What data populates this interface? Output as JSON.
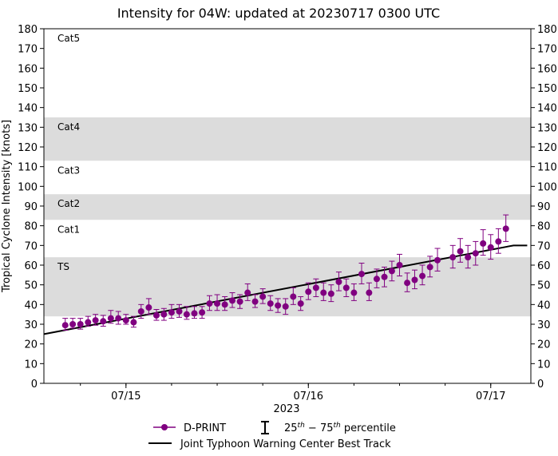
{
  "chart_data": {
    "type": "line",
    "title": "Intensity for 04W: updated at 20230717 0300 UTC",
    "ylabel": "Tropical Cyclone Intensity [knots]",
    "xlabel": "2023",
    "ylim": [
      0,
      180
    ],
    "yticks": [
      0,
      10,
      20,
      30,
      40,
      50,
      60,
      70,
      80,
      90,
      100,
      110,
      120,
      130,
      140,
      150,
      160,
      170,
      180
    ],
    "xlim_days": [
      14.55,
      17.22
    ],
    "xticks": [
      {
        "day": 15,
        "label": "07/15"
      },
      {
        "day": 16,
        "label": "07/16"
      },
      {
        "day": 17,
        "label": "07/17"
      }
    ],
    "categories": [
      {
        "label": "TS",
        "ymin": 34,
        "ymax": 64,
        "shaded": true
      },
      {
        "label": "Cat1",
        "ymin": 64,
        "ymax": 83,
        "shaded": false
      },
      {
        "label": "Cat2",
        "ymin": 83,
        "ymax": 96,
        "shaded": true
      },
      {
        "label": "Cat3",
        "ymin": 96,
        "ymax": 113,
        "shaded": false
      },
      {
        "label": "Cat4",
        "ymin": 113,
        "ymax": 135,
        "shaded": true
      },
      {
        "label": "Cat5",
        "ymin": 135,
        "ymax": 180,
        "shaded": false
      }
    ],
    "series": [
      {
        "name": "D-PRINT",
        "color": "#800080",
        "points": [
          {
            "x": 14.667,
            "y": 29.5,
            "lo": 27,
            "hi": 33
          },
          {
            "x": 14.708,
            "y": 30,
            "lo": 28,
            "hi": 33
          },
          {
            "x": 14.75,
            "y": 30,
            "lo": 27.5,
            "hi": 33
          },
          {
            "x": 14.792,
            "y": 31,
            "lo": 29,
            "hi": 34
          },
          {
            "x": 14.833,
            "y": 32,
            "lo": 29.5,
            "hi": 35
          },
          {
            "x": 14.875,
            "y": 31.5,
            "lo": 29,
            "hi": 34.5
          },
          {
            "x": 14.917,
            "y": 33,
            "lo": 30.5,
            "hi": 37
          },
          {
            "x": 14.958,
            "y": 33,
            "lo": 30,
            "hi": 36.5
          },
          {
            "x": 15.0,
            "y": 32,
            "lo": 30,
            "hi": 35
          },
          {
            "x": 15.042,
            "y": 31,
            "lo": 28.5,
            "hi": 34
          },
          {
            "x": 15.083,
            "y": 36.5,
            "lo": 33,
            "hi": 40
          },
          {
            "x": 15.125,
            "y": 38.5,
            "lo": 35,
            "hi": 43
          },
          {
            "x": 15.167,
            "y": 34.5,
            "lo": 32,
            "hi": 37.5
          },
          {
            "x": 15.208,
            "y": 35,
            "lo": 32,
            "hi": 38
          },
          {
            "x": 15.25,
            "y": 36,
            "lo": 33,
            "hi": 40
          },
          {
            "x": 15.292,
            "y": 36.5,
            "lo": 33.5,
            "hi": 40
          },
          {
            "x": 15.333,
            "y": 35,
            "lo": 32.5,
            "hi": 39
          },
          {
            "x": 15.375,
            "y": 35.5,
            "lo": 33,
            "hi": 39
          },
          {
            "x": 15.417,
            "y": 36,
            "lo": 33,
            "hi": 39
          },
          {
            "x": 15.458,
            "y": 40.5,
            "lo": 37,
            "hi": 44.5
          },
          {
            "x": 15.5,
            "y": 40.5,
            "lo": 37,
            "hi": 45
          },
          {
            "x": 15.542,
            "y": 40,
            "lo": 37,
            "hi": 44
          },
          {
            "x": 15.583,
            "y": 42,
            "lo": 38.5,
            "hi": 46
          },
          {
            "x": 15.625,
            "y": 41.5,
            "lo": 38,
            "hi": 45
          },
          {
            "x": 15.667,
            "y": 46,
            "lo": 42,
            "hi": 50.5
          },
          {
            "x": 15.708,
            "y": 41.5,
            "lo": 38.5,
            "hi": 45
          },
          {
            "x": 15.75,
            "y": 44,
            "lo": 40.5,
            "hi": 48
          },
          {
            "x": 15.792,
            "y": 40.5,
            "lo": 37,
            "hi": 44.5
          },
          {
            "x": 15.833,
            "y": 39.5,
            "lo": 36,
            "hi": 43
          },
          {
            "x": 15.875,
            "y": 39,
            "lo": 35,
            "hi": 43
          },
          {
            "x": 15.917,
            "y": 44,
            "lo": 40,
            "hi": 48.5
          },
          {
            "x": 15.958,
            "y": 40.5,
            "lo": 37,
            "hi": 44
          },
          {
            "x": 16.0,
            "y": 46.5,
            "lo": 42.5,
            "hi": 51
          },
          {
            "x": 16.042,
            "y": 48.5,
            "lo": 44,
            "hi": 53
          },
          {
            "x": 16.083,
            "y": 46,
            "lo": 42,
            "hi": 51
          },
          {
            "x": 16.125,
            "y": 45.5,
            "lo": 41.5,
            "hi": 50
          },
          {
            "x": 16.167,
            "y": 51.5,
            "lo": 47,
            "hi": 56.5
          },
          {
            "x": 16.208,
            "y": 48.5,
            "lo": 44,
            "hi": 53
          },
          {
            "x": 16.25,
            "y": 46,
            "lo": 42,
            "hi": 50.5
          },
          {
            "x": 16.292,
            "y": 55.5,
            "lo": 50.5,
            "hi": 61
          },
          {
            "x": 16.333,
            "y": 46,
            "lo": 42,
            "hi": 51
          },
          {
            "x": 16.375,
            "y": 53,
            "lo": 48.5,
            "hi": 58
          },
          {
            "x": 16.417,
            "y": 54,
            "lo": 49,
            "hi": 59
          },
          {
            "x": 16.458,
            "y": 57,
            "lo": 52,
            "hi": 62
          },
          {
            "x": 16.5,
            "y": 60,
            "lo": 54.5,
            "hi": 65.5
          },
          {
            "x": 16.542,
            "y": 51,
            "lo": 46.5,
            "hi": 56
          },
          {
            "x": 16.583,
            "y": 52.5,
            "lo": 48,
            "hi": 57.5
          },
          {
            "x": 16.625,
            "y": 54.5,
            "lo": 50,
            "hi": 60
          },
          {
            "x": 16.667,
            "y": 59,
            "lo": 54,
            "hi": 64.5
          },
          {
            "x": 16.708,
            "y": 62.5,
            "lo": 57,
            "hi": 68.5
          },
          {
            "x": 16.792,
            "y": 64,
            "lo": 58.5,
            "hi": 70
          },
          {
            "x": 16.833,
            "y": 67,
            "lo": 61.5,
            "hi": 73.5
          },
          {
            "x": 16.875,
            "y": 64,
            "lo": 58.5,
            "hi": 70
          },
          {
            "x": 16.917,
            "y": 66,
            "lo": 60,
            "hi": 72
          },
          {
            "x": 16.958,
            "y": 71,
            "lo": 65,
            "hi": 78
          },
          {
            "x": 17.0,
            "y": 69,
            "lo": 63,
            "hi": 75.5
          },
          {
            "x": 17.042,
            "y": 72,
            "lo": 66,
            "hi": 78.5
          },
          {
            "x": 17.083,
            "y": 78.5,
            "lo": 72,
            "hi": 85.5
          }
        ]
      },
      {
        "name": "Joint Typhoon Warning Center Best Track",
        "color": "#000000",
        "points": [
          {
            "x": 14.55,
            "y": 25
          },
          {
            "x": 17.125,
            "y": 70
          },
          {
            "x": 17.2,
            "y": 70
          }
        ]
      }
    ],
    "legend": {
      "position": "bottom-center",
      "items": [
        {
          "label": "D-PRINT"
        },
        {
          "label_parts": [
            "25",
            "th",
            " − 75",
            "th",
            " percentile"
          ]
        },
        {
          "label": "Joint Typhoon Warning Center Best Track"
        }
      ]
    }
  }
}
